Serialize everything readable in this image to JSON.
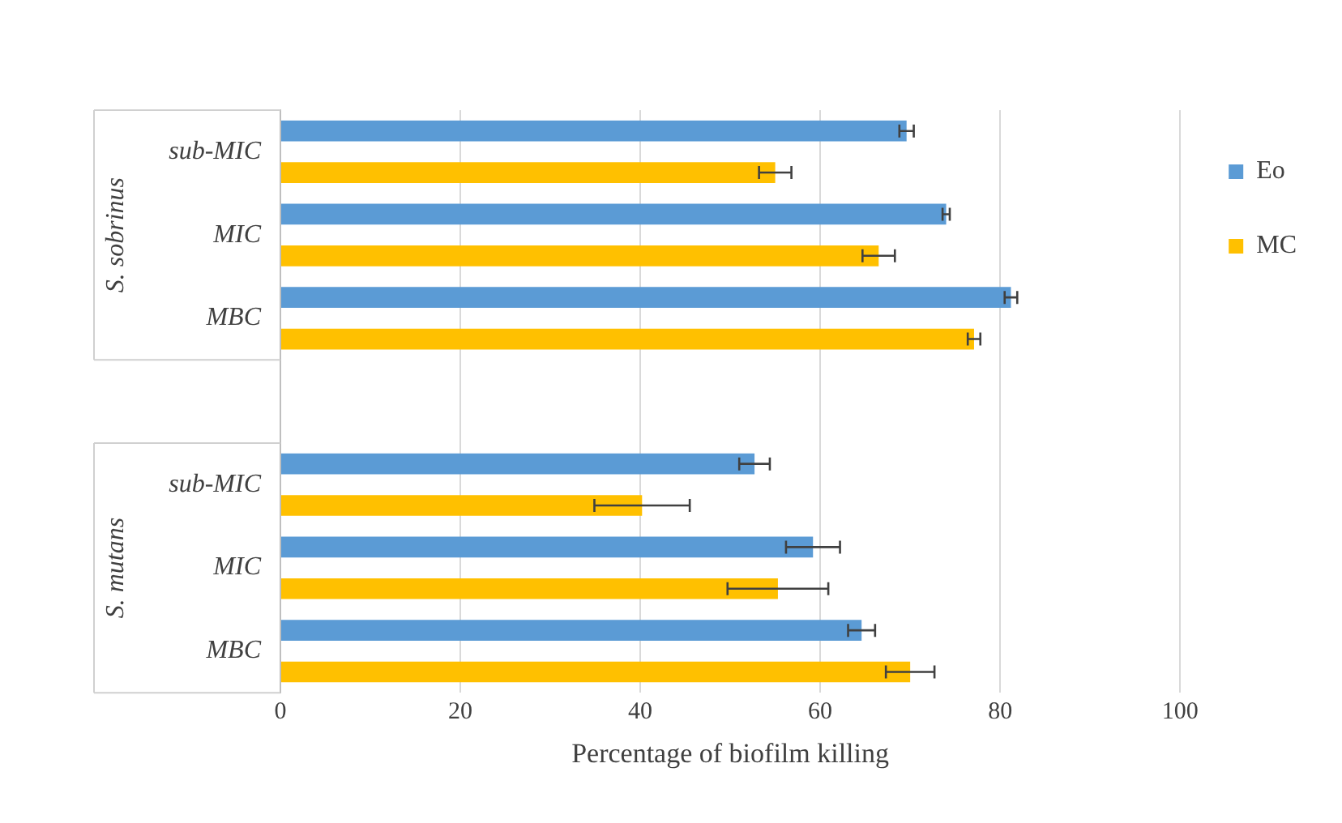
{
  "chart_data": {
    "type": "bar",
    "orientation": "horizontal",
    "xlabel": "Percentage of biofilm killing",
    "categories": [
      "sub-MIC",
      "MIC",
      "MBC",
      null,
      "sub-MIC",
      "MIC",
      "MBC"
    ],
    "annotations": [
      "S. sobrinus",
      "S. mutans"
    ],
    "series": [
      {
        "name": "Eo",
        "color": "#5b9bd5",
        "values": [
          69.6,
          74.0,
          81.2,
          null,
          52.7,
          59.2,
          64.6
        ],
        "errors": [
          0.8,
          0.4,
          0.7,
          null,
          1.7,
          3.0,
          1.5
        ]
      },
      {
        "name": "MC",
        "color": "#ffc000",
        "values": [
          55.0,
          66.5,
          77.1,
          null,
          40.2,
          55.3,
          70.0
        ],
        "errors": [
          1.8,
          1.8,
          0.7,
          null,
          5.3,
          5.6,
          2.7
        ]
      }
    ],
    "xlim": [
      0,
      100
    ],
    "xticks": [
      0,
      20,
      40,
      60,
      80,
      100
    ],
    "grid": "x",
    "legend": "right"
  }
}
